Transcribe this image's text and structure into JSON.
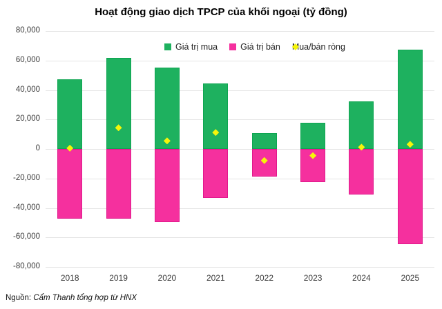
{
  "chart": {
    "title": "Hoạt động giao dịch TPCP của khối ngoại (tỷ đồng)"
  },
  "legend": {
    "items": [
      {
        "label": "Giá trị mua",
        "marker": "square",
        "color": "#1eb15f"
      },
      {
        "label": "Giá trị bán",
        "marker": "square",
        "color": "#f5309e"
      },
      {
        "label": "Mua/bán ròng",
        "marker": "diamond",
        "color": "#f5f50a"
      }
    ]
  },
  "source": {
    "prefix": "Nguồn: ",
    "text": "Cẩm Thanh tổng hợp từ HNX"
  },
  "colors": {
    "buy_fill": "#1eb15f",
    "buy_border": "#0da551",
    "sell_fill": "#f5309e",
    "sell_border": "#e0188c",
    "net_fill": "#f5f50a",
    "grid": "#e4e4e4",
    "axis_text": "#3a3a3a"
  },
  "chart_data": {
    "type": "bar",
    "title": "Hoạt động giao dịch TPCP của khối ngoại (tỷ đồng)",
    "categories": [
      "2018",
      "2019",
      "2020",
      "2021",
      "2022",
      "2023",
      "2024",
      "2025"
    ],
    "series": [
      {
        "name": "Giá trị mua",
        "type": "bar",
        "values": [
          47500,
          61800,
          55200,
          44500,
          10700,
          17800,
          32200,
          67600
        ]
      },
      {
        "name": "Giá trị bán",
        "type": "bar",
        "values": [
          -47000,
          -47400,
          -49700,
          -33300,
          -18500,
          -22300,
          -31000,
          -64400
        ]
      },
      {
        "name": "Mua/bán ròng",
        "type": "scatter",
        "values": [
          500,
          14400,
          5500,
          11200,
          -7800,
          -4500,
          1200,
          3200
        ]
      }
    ],
    "xlabel": "",
    "ylabel": "",
    "ylim": [
      -80000,
      80000
    ],
    "yticks": [
      {
        "value": 80000,
        "label": "80,000"
      },
      {
        "value": 60000,
        "label": "60,000"
      },
      {
        "value": 40000,
        "label": "40,000"
      },
      {
        "value": 20000,
        "label": "20,000"
      },
      {
        "value": 0,
        "label": "0"
      },
      {
        "value": -20000,
        "label": "-20,000"
      },
      {
        "value": -40000,
        "label": "-40,000"
      },
      {
        "value": -60000,
        "label": "-60,000"
      },
      {
        "value": -80000,
        "label": "-80,000"
      }
    ],
    "grid": true,
    "legend_position": "top"
  }
}
